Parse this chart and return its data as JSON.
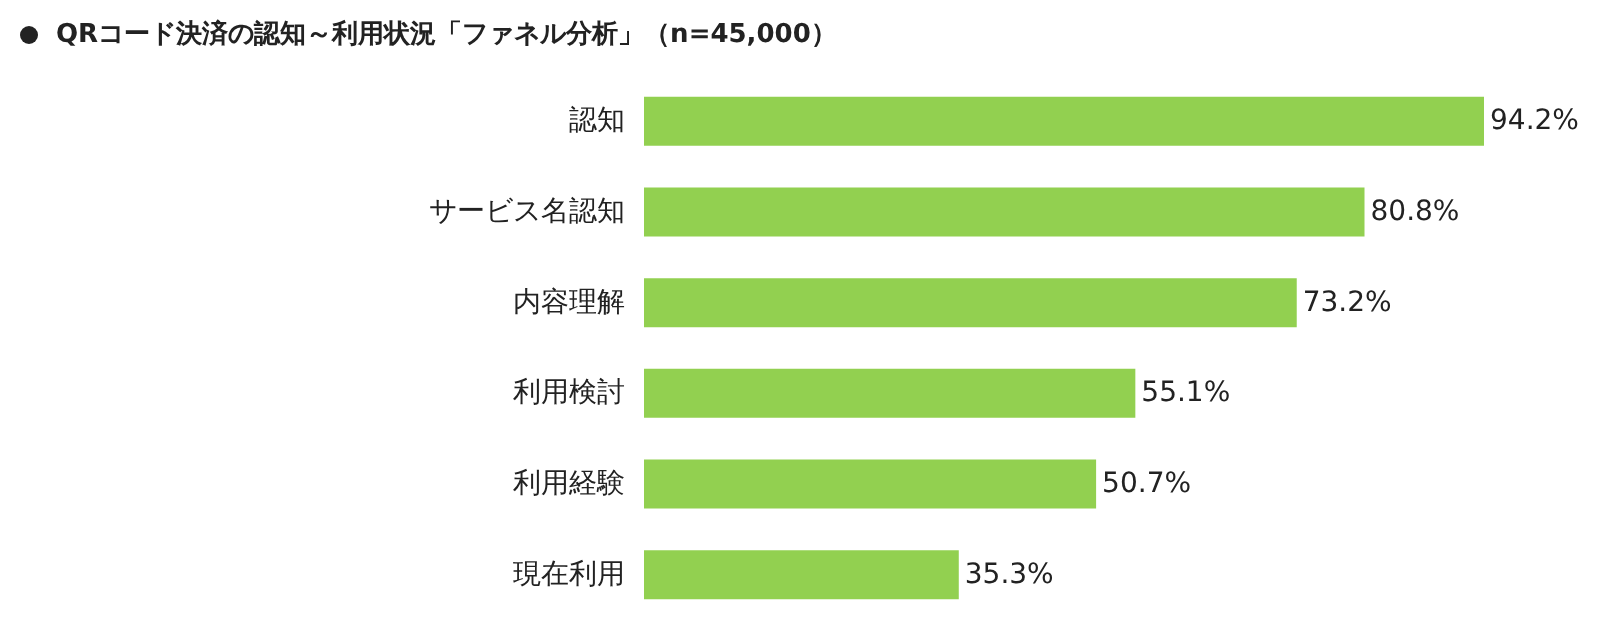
{
  "chart_data": {
    "type": "bar",
    "orientation": "horizontal",
    "title": "QRコード決済の認知～利用状況「ファネル分析」（n=45,000）",
    "categories": [
      "認知",
      "サービス名認知",
      "内容理解",
      "利用検討",
      "利用経験",
      "現在利用"
    ],
    "values": [
      94.2,
      80.8,
      73.2,
      55.1,
      50.7,
      35.3
    ],
    "value_labels": [
      "94.2%",
      "80.8%",
      "73.2%",
      "55.1%",
      "50.7%",
      "35.3%"
    ],
    "color": "#92d050"
  }
}
